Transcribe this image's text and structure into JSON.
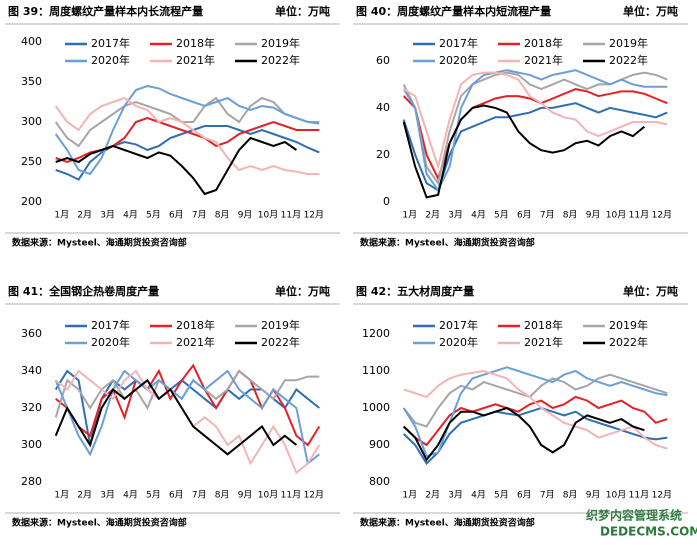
{
  "chart_data": [
    {
      "type": "line",
      "title": "图 39：周度螺纹产量样本内长流程产量",
      "unit": "单位：万吨",
      "source": "数据来源：Mysteel、海通期货投资咨询部",
      "categories": [
        "1月",
        null,
        "2月",
        null,
        "3月",
        null,
        "4月",
        null,
        "5月",
        null,
        "6月",
        null,
        "7月",
        null,
        "8月",
        null,
        "9月",
        null,
        "10月",
        null,
        "11月",
        null,
        "12月",
        null
      ],
      "ylim": [
        200,
        400
      ],
      "yticks": [
        200,
        250,
        300,
        350,
        400
      ],
      "series": [
        {
          "name": "2017年",
          "color": "#2e6fb4",
          "values": [
            240,
            235,
            228,
            250,
            262,
            270,
            275,
            272,
            265,
            270,
            280,
            285,
            290,
            295,
            295,
            295,
            290,
            285,
            290,
            285,
            280,
            275,
            268,
            262
          ]
        },
        {
          "name": "2018年",
          "color": "#e32226",
          "values": [
            255,
            250,
            255,
            262,
            265,
            270,
            280,
            300,
            305,
            300,
            295,
            290,
            285,
            280,
            270,
            275,
            285,
            290,
            295,
            300,
            295,
            290,
            290,
            290
          ]
        },
        {
          "name": "2019年",
          "color": "#a6a6a6",
          "values": [
            300,
            280,
            270,
            290,
            300,
            310,
            320,
            325,
            320,
            315,
            310,
            300,
            300,
            320,
            330,
            310,
            300,
            320,
            330,
            325,
            310,
            305,
            300,
            300
          ]
        },
        {
          "name": "2020年",
          "color": "#6a9fd8",
          "values": [
            285,
            265,
            240,
            235,
            255,
            290,
            320,
            340,
            345,
            342,
            335,
            330,
            325,
            320,
            325,
            330,
            320,
            315,
            320,
            318,
            310,
            305,
            300,
            298
          ]
        },
        {
          "name": "2021年",
          "color": "#f4b4b4",
          "values": [
            320,
            300,
            290,
            310,
            320,
            325,
            330,
            320,
            315,
            300,
            305,
            300,
            290,
            280,
            275,
            255,
            240,
            245,
            240,
            245,
            240,
            238,
            235,
            235
          ]
        },
        {
          "name": "2022年",
          "color": "#000000",
          "values": [
            250,
            255,
            250,
            260,
            265,
            270,
            265,
            260,
            255,
            262,
            258,
            245,
            230,
            210,
            215,
            240,
            265,
            280,
            275,
            270,
            275,
            265,
            null,
            null
          ]
        }
      ]
    },
    {
      "type": "line",
      "title": "图 40：周度螺纹产量样本内短流程产量",
      "unit": "单位：万吨",
      "source": "数据来源：Mysteel、海通期货投资咨询部",
      "categories": [
        "1月",
        null,
        "2月",
        null,
        "3月",
        null,
        "4月",
        null,
        "5月",
        null,
        "6月",
        null,
        "7月",
        null,
        "8月",
        null,
        "9月",
        null,
        "10月",
        null,
        "11月",
        null,
        "12月",
        null
      ],
      "ylim": [
        0,
        68
      ],
      "yticks": [
        0,
        20,
        40,
        60
      ],
      "series": [
        {
          "name": "2017年",
          "color": "#2e6fb4",
          "values": [
            35,
            20,
            8,
            5,
            20,
            30,
            32,
            34,
            36,
            36,
            37,
            38,
            40,
            40,
            41,
            42,
            40,
            38,
            40,
            39,
            38,
            37,
            36,
            38
          ]
        },
        {
          "name": "2018年",
          "color": "#e32226",
          "values": [
            45,
            40,
            20,
            10,
            25,
            35,
            40,
            42,
            44,
            45,
            45,
            44,
            42,
            44,
            46,
            48,
            47,
            45,
            46,
            47,
            47,
            46,
            44,
            42
          ]
        },
        {
          "name": "2019年",
          "color": "#a6a6a6",
          "values": [
            50,
            40,
            15,
            8,
            30,
            45,
            50,
            52,
            54,
            55,
            54,
            50,
            48,
            50,
            52,
            50,
            48,
            50,
            50,
            52,
            54,
            55,
            54,
            52
          ]
        },
        {
          "name": "2020年",
          "color": "#6a9fd8",
          "values": [
            48,
            40,
            12,
            5,
            15,
            40,
            50,
            54,
            55,
            56,
            55,
            54,
            52,
            54,
            55,
            56,
            54,
            52,
            50,
            52,
            50,
            49,
            49,
            49
          ]
        },
        {
          "name": "2021年",
          "color": "#f4b4b4",
          "values": [
            48,
            45,
            30,
            15,
            35,
            50,
            54,
            55,
            55,
            54,
            52,
            45,
            42,
            38,
            36,
            35,
            30,
            28,
            30,
            32,
            34,
            34,
            34,
            33
          ]
        },
        {
          "name": "2022年",
          "color": "#000000",
          "values": [
            34,
            15,
            2,
            3,
            25,
            35,
            40,
            41,
            40,
            38,
            30,
            25,
            22,
            21,
            22,
            25,
            26,
            24,
            28,
            30,
            28,
            32,
            null,
            null
          ]
        }
      ]
    },
    {
      "type": "line",
      "title": "图 41：全国钢企热卷周度产量",
      "unit": "单位：万吨",
      "source": "数据来源：Mysteel、海通期货投资咨询部",
      "categories": [
        "1月",
        null,
        "2月",
        null,
        "3月",
        null,
        "4月",
        null,
        "5月",
        null,
        "6月",
        null,
        "7月",
        null,
        "8月",
        null,
        "9月",
        null,
        "10月",
        null,
        "11月",
        null,
        "12月",
        null
      ],
      "ylim": [
        280,
        360
      ],
      "yticks": [
        280,
        300,
        320,
        340,
        360
      ],
      "series": [
        {
          "name": "2017年",
          "color": "#2e6fb4",
          "values": [
            330,
            340,
            335,
            300,
            325,
            335,
            330,
            335,
            330,
            325,
            330,
            335,
            330,
            325,
            320,
            330,
            325,
            330,
            330,
            325,
            320,
            330,
            325,
            320
          ]
        },
        {
          "name": "2018年",
          "color": "#e32226",
          "values": [
            325,
            320,
            310,
            305,
            325,
            330,
            315,
            335,
            330,
            340,
            325,
            335,
            343,
            330,
            320,
            330,
            340,
            335,
            320,
            330,
            320,
            305,
            300,
            310
          ]
        },
        {
          "name": "2019年",
          "color": "#a6a6a6",
          "values": [
            315,
            335,
            330,
            320,
            330,
            335,
            325,
            330,
            320,
            335,
            330,
            325,
            335,
            330,
            325,
            330,
            340,
            335,
            330,
            325,
            335,
            335,
            337,
            337
          ]
        },
        {
          "name": "2020年",
          "color": "#6a9fd8",
          "values": [
            335,
            320,
            305,
            295,
            310,
            330,
            340,
            335,
            330,
            335,
            330,
            325,
            335,
            330,
            335,
            340,
            330,
            325,
            320,
            330,
            325,
            320,
            290,
            295
          ]
        },
        {
          "name": "2021年",
          "color": "#f4b4b4",
          "values": [
            335,
            330,
            340,
            335,
            330,
            325,
            335,
            340,
            330,
            325,
            330,
            320,
            310,
            315,
            310,
            300,
            305,
            290,
            300,
            310,
            300,
            285,
            290,
            300
          ]
        },
        {
          "name": "2022年",
          "color": "#000000",
          "values": [
            305,
            320,
            310,
            300,
            320,
            330,
            325,
            330,
            335,
            325,
            330,
            320,
            310,
            305,
            300,
            295,
            300,
            305,
            310,
            300,
            305,
            300,
            null,
            null
          ]
        }
      ]
    },
    {
      "type": "line",
      "title": "图 42：五大材周度产量",
      "unit": "单位：万吨",
      "source": "数据来源：Mysteel、海通期货投资咨询部",
      "categories": [
        "1月",
        null,
        "2月",
        null,
        "3月",
        null,
        "4月",
        null,
        "5月",
        null,
        "6月",
        null,
        "7月",
        null,
        "8月",
        null,
        "9月",
        null,
        "10月",
        null,
        "11月",
        null,
        "12月",
        null
      ],
      "ylim": [
        800,
        1200
      ],
      "yticks": [
        800,
        900,
        1000,
        1100,
        1200
      ],
      "series": [
        {
          "name": "2017年",
          "color": "#2e6fb4",
          "values": [
            930,
            900,
            850,
            880,
            930,
            960,
            970,
            980,
            990,
            985,
            980,
            990,
            1000,
            990,
            980,
            990,
            970,
            960,
            950,
            940,
            930,
            920,
            915,
            920
          ]
        },
        {
          "name": "2018年",
          "color": "#e32226",
          "values": [
            950,
            920,
            900,
            940,
            980,
            1000,
            990,
            1000,
            1010,
            1000,
            990,
            1010,
            1020,
            1000,
            1010,
            1030,
            1020,
            1000,
            1010,
            1020,
            1000,
            990,
            960,
            970
          ]
        },
        {
          "name": "2019年",
          "color": "#a6a6a6",
          "values": [
            1000,
            960,
            950,
            1000,
            1040,
            1060,
            1050,
            1070,
            1060,
            1050,
            1040,
            1030,
            1060,
            1080,
            1070,
            1050,
            1060,
            1080,
            1090,
            1080,
            1070,
            1060,
            1050,
            1040
          ]
        },
        {
          "name": "2020年",
          "color": "#6a9fd8",
          "values": [
            1000,
            950,
            870,
            880,
            960,
            1040,
            1080,
            1090,
            1100,
            1110,
            1100,
            1090,
            1080,
            1070,
            1090,
            1100,
            1080,
            1070,
            1060,
            1070,
            1060,
            1050,
            1040,
            1035
          ]
        },
        {
          "name": "2021年",
          "color": "#f4b4b4",
          "values": [
            1050,
            1040,
            1030,
            1060,
            1080,
            1090,
            1095,
            1100,
            1090,
            1080,
            1050,
            1030,
            1000,
            980,
            960,
            950,
            940,
            920,
            930,
            940,
            950,
            920,
            900,
            890
          ]
        },
        {
          "name": "2022年",
          "color": "#000000",
          "values": [
            950,
            920,
            860,
            900,
            960,
            990,
            990,
            980,
            990,
            1000,
            980,
            950,
            900,
            880,
            900,
            960,
            980,
            970,
            960,
            970,
            950,
            940,
            null,
            null
          ]
        }
      ]
    }
  ],
  "watermark": [
    "织梦内容管理系统",
    "DEDECMS.COM"
  ]
}
